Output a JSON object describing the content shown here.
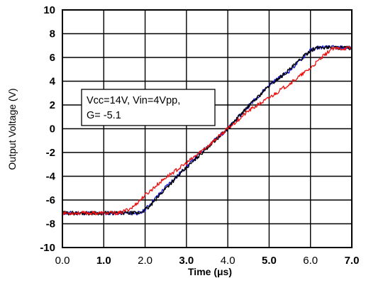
{
  "chart_data": {
    "type": "line",
    "xlabel": "Time (μs)",
    "ylabel": "Output Voltage (V)",
    "xlim": [
      0,
      7
    ],
    "ylim": [
      -10,
      10
    ],
    "xticks": [
      0,
      1,
      2,
      3,
      4,
      5,
      6,
      7
    ],
    "xtick_labels": [
      "0.0",
      "1.0",
      "2.0",
      "3.0",
      "4.0",
      "5.0",
      "6.0",
      "7.0"
    ],
    "yticks": [
      -10,
      -8,
      -6,
      -4,
      -2,
      0,
      2,
      4,
      6,
      8,
      10
    ],
    "ytick_labels": [
      "-10",
      "-8",
      "-6",
      "-4",
      "-2",
      "0",
      "2",
      "4",
      "6",
      "8",
      "10"
    ],
    "grid": true,
    "annotation": [
      "Vcc=14V, Vin=4Vpp,",
      "G= -5.1"
    ],
    "series": [
      {
        "color": "#1a1acc",
        "x": [
          0,
          1.9,
          2.0,
          2.5,
          3.0,
          3.5,
          4.0,
          4.5,
          5.0,
          5.5,
          6.0,
          6.2,
          6.5,
          7.0
        ],
        "y": [
          -7.1,
          -7.1,
          -6.8,
          -4.9,
          -3.2,
          -1.5,
          0.0,
          1.9,
          3.7,
          4.9,
          6.6,
          6.85,
          6.85,
          6.8
        ]
      },
      {
        "color": "#000000",
        "x": [
          0,
          1.85,
          1.95,
          2.1,
          2.5,
          3.0,
          3.5,
          4.0,
          4.5,
          5.0,
          5.5,
          6.0,
          6.2,
          6.5,
          7.0
        ],
        "y": [
          -7.1,
          -7.1,
          -6.9,
          -6.6,
          -5.0,
          -3.3,
          -1.6,
          0.0,
          1.9,
          3.6,
          5.0,
          6.6,
          6.85,
          6.85,
          6.8
        ]
      },
      {
        "color": "#ee1111",
        "x": [
          0,
          1.4,
          1.7,
          2.0,
          2.5,
          3.0,
          3.5,
          4.0,
          4.5,
          5.0,
          5.5,
          6.0,
          6.5,
          7.0
        ],
        "y": [
          -7.1,
          -7.1,
          -6.6,
          -5.6,
          -4.1,
          -2.9,
          -1.5,
          0.0,
          1.5,
          2.6,
          3.8,
          5.1,
          6.7,
          6.8
        ]
      }
    ]
  }
}
